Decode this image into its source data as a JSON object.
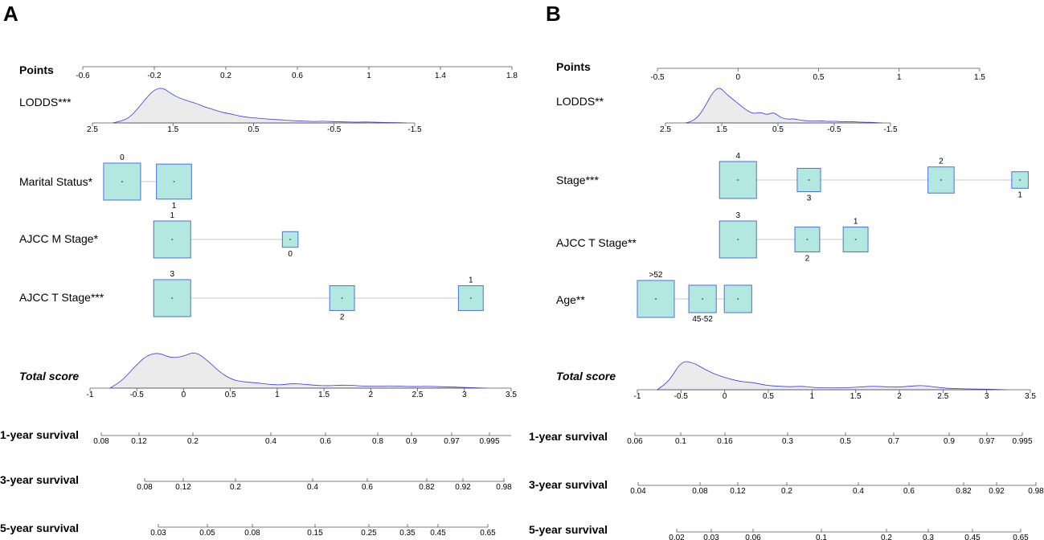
{
  "chart_data": [
    {
      "type": "nomogram",
      "panel": "A",
      "points": {
        "title": "Points",
        "ticks": [
          "-0.6",
          "-0.2",
          "0.2",
          "0.6",
          "1",
          "1.4",
          "1.8"
        ]
      },
      "lodds": {
        "label": "LODDS***",
        "ticks": [
          "2.5",
          "1.5",
          "0.5",
          "-0.5",
          "-1.5"
        ],
        "density_profile": [
          0,
          0.05,
          0.15,
          0.4,
          0.7,
          0.95,
          1.0,
          0.82,
          0.7,
          0.62,
          0.55,
          0.45,
          0.38,
          0.3,
          0.26,
          0.2,
          0.16,
          0.14,
          0.12,
          0.1,
          0.09,
          0.07,
          0.06,
          0.05,
          0.04,
          0.05,
          0.04,
          0.03,
          0.03,
          0.02,
          0.03,
          0.02,
          0.02,
          0.01,
          0.01,
          0
        ]
      },
      "variables": [
        {
          "label": "Marital Status*",
          "levels": [
            {
              "label": "0",
              "points": -0.38,
              "weight": 1.0,
              "label_pos": "above"
            },
            {
              "label": "1",
              "points": -0.09,
              "weight": 0.9,
              "label_pos": "below"
            }
          ]
        },
        {
          "label": "AJCC M Stage*",
          "levels": [
            {
              "label": "1",
              "points": -0.1,
              "weight": 1.0,
              "label_pos": "above"
            },
            {
              "label": "0",
              "points": 0.56,
              "weight": 0.18,
              "label_pos": "below"
            }
          ]
        },
        {
          "label": "AJCC T Stage***",
          "levels": [
            {
              "label": "3",
              "points": -0.1,
              "weight": 1.0,
              "label_pos": "above"
            },
            {
              "label": "2",
              "points": 0.85,
              "weight": 0.45,
              "label_pos": "below"
            },
            {
              "label": "1",
              "points": 1.57,
              "weight": 0.45,
              "label_pos": "above"
            }
          ]
        }
      ],
      "total_score": {
        "label": "Total score",
        "ticks": [
          "-1",
          "-0.5",
          "0",
          "0.5",
          "1",
          "1.5",
          "2",
          "2.5",
          "3",
          "3.5"
        ],
        "density_profile": [
          0,
          0.2,
          0.55,
          0.85,
          0.92,
          0.78,
          0.82,
          0.95,
          0.72,
          0.42,
          0.22,
          0.16,
          0.14,
          0.1,
          0.08,
          0.12,
          0.1,
          0.07,
          0.06,
          0.08,
          0.07,
          0.05,
          0.05,
          0.06,
          0.05,
          0.04,
          0.05,
          0.04,
          0.03,
          0.02,
          0.01,
          0
        ]
      },
      "survival": [
        {
          "label": "1-year survival",
          "ticks": [
            "0.08",
            "0.12",
            "0.2",
            "0.4",
            "0.6",
            "0.8",
            "0.9",
            "0.97",
            "0.995"
          ]
        },
        {
          "label": "3-year survival",
          "ticks": [
            "0.08",
            "0.12",
            "0.2",
            "0.4",
            "0.6",
            "0.82",
            "0.92",
            "0.98"
          ]
        },
        {
          "label": "5-year survival",
          "ticks": [
            "0.03",
            "0.05",
            "0.08",
            "0.15",
            "0.25",
            "0.35",
            "0.45",
            "0.65"
          ]
        }
      ]
    },
    {
      "type": "nomogram",
      "panel": "B",
      "points": {
        "title": "Points",
        "ticks": [
          "-0.5",
          "0",
          "0.5",
          "1",
          "1.5"
        ]
      },
      "lodds": {
        "label": "LODDS**",
        "ticks": [
          "2.5",
          "1.5",
          "0.5",
          "-0.5",
          "-1.5"
        ],
        "density_profile": [
          0,
          0.05,
          0.2,
          0.5,
          0.85,
          1.0,
          0.8,
          0.65,
          0.5,
          0.35,
          0.25,
          0.3,
          0.22,
          0.3,
          0.15,
          0.1,
          0.12,
          0.07,
          0.06,
          0.05,
          0.06,
          0.04,
          0.05,
          0.03,
          0.04,
          0.03,
          0.02,
          0.02,
          0.01,
          0
        ]
      },
      "variables": [
        {
          "label": "Stage***",
          "levels": [
            {
              "label": "4",
              "points": 0,
              "weight": 1.0,
              "label_pos": "above"
            },
            {
              "label": "3",
              "points": 0.44,
              "weight": 0.4,
              "label_pos": "below"
            },
            {
              "label": "2",
              "points": 1.26,
              "weight": 0.5,
              "label_pos": "above"
            },
            {
              "label": "1",
              "points": 1.75,
              "weight": 0.2,
              "label_pos": "below"
            }
          ]
        },
        {
          "label": "AJCC T Stage**",
          "levels": [
            {
              "label": "3",
              "points": 0,
              "weight": 1.0,
              "label_pos": "above"
            },
            {
              "label": "2",
              "points": 0.43,
              "weight": 0.45,
              "label_pos": "below"
            },
            {
              "label": "1",
              "points": 0.73,
              "weight": 0.45,
              "label_pos": "above"
            }
          ]
        },
        {
          "label": "Age**",
          "levels": [
            {
              "label": ">52",
              "points": -0.51,
              "weight": 1.0,
              "label_pos": "above"
            },
            {
              "label": "45-52",
              "points": -0.22,
              "weight": 0.55,
              "label_pos": "below"
            },
            {
              "label": "",
              "points": 0,
              "weight": 0.55,
              "label_pos": "none"
            }
          ]
        }
      ],
      "total_score": {
        "label": "Total score",
        "ticks": [
          "-1",
          "-0.5",
          "0",
          "0.5",
          "1",
          "1.5",
          "2",
          "2.5",
          "3",
          "3.5"
        ],
        "density_profile": [
          0,
          0.25,
          0.8,
          0.75,
          0.55,
          0.4,
          0.3,
          0.22,
          0.2,
          0.12,
          0.1,
          0.08,
          0.1,
          0.06,
          0.05,
          0.05,
          0.06,
          0.08,
          0.1,
          0.08,
          0.07,
          0.1,
          0.12,
          0.08,
          0.04,
          0.03,
          0.02,
          0.02,
          0.01,
          0
        ]
      },
      "survival": [
        {
          "label": "1-year survival",
          "ticks": [
            "0.06",
            "0.1",
            "0.16",
            "0.3",
            "0.5",
            "0.7",
            "0.9",
            "0.97",
            "0.995"
          ]
        },
        {
          "label": "3-year survival",
          "ticks": [
            "0.04",
            "0.08",
            "0.12",
            "0.2",
            "0.4",
            "0.6",
            "0.82",
            "0.92",
            "0.98"
          ]
        },
        {
          "label": "5-year survival",
          "ticks": [
            "0.02",
            "0.03",
            "0.06",
            "0.1",
            "0.2",
            "0.3",
            "0.45",
            "0.65"
          ]
        }
      ]
    }
  ]
}
